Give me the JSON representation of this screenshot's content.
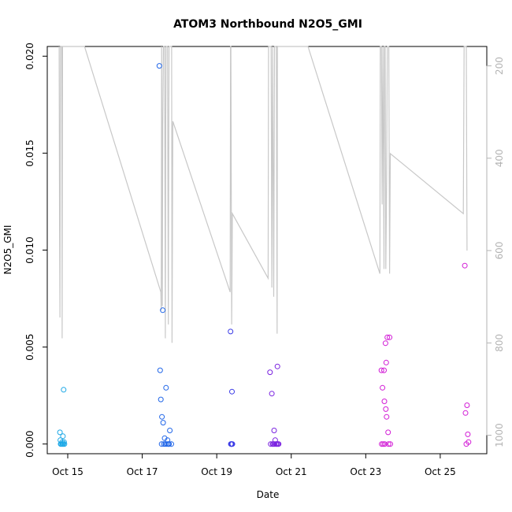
{
  "chart_data": {
    "type": "scatter",
    "title": "ATOM3 Northbound N2O5_GMI",
    "xlabel": "Date",
    "ylabel": "N2O5_GMI",
    "x_ticks": [
      "Oct 15",
      "Oct 17",
      "Oct 19",
      "Oct 21",
      "Oct 23",
      "Oct 25"
    ],
    "x_tick_days": [
      15,
      17,
      19,
      21,
      23,
      25
    ],
    "xlim": [
      14.45,
      26.25
    ],
    "ylim": [
      -0.0005,
      0.0205
    ],
    "y_ticks": [
      "0.000",
      "0.005",
      "0.010",
      "0.015",
      "0.020"
    ],
    "y_tick_values": [
      0.0,
      0.005,
      0.01,
      0.015,
      0.02
    ],
    "y2_ticks": [
      "200",
      "400",
      "600",
      "800",
      "1000"
    ],
    "y2_tick_values": [
      200,
      400,
      600,
      800,
      1000
    ],
    "y2lim_top_to_bottom": [
      158,
      1040
    ],
    "secondary_axis": "pressure (reversed), gray line",
    "grid": false,
    "series": [
      {
        "color": "#1aa7e6",
        "points": [
          [
            14.79,
            0.0006
          ],
          [
            14.8,
            0.0002
          ],
          [
            14.81,
            0.0
          ],
          [
            14.83,
            0.0
          ],
          [
            14.85,
            0.0001
          ],
          [
            14.86,
            0.0
          ],
          [
            14.87,
            0.0004
          ],
          [
            14.88,
            0.0
          ],
          [
            14.89,
            0.0028
          ],
          [
            14.9,
            0.0001
          ],
          [
            14.91,
            0.0
          ]
        ]
      },
      {
        "color": "#2166e8",
        "points": [
          [
            17.46,
            0.0195
          ],
          [
            17.48,
            0.0038
          ],
          [
            17.5,
            0.0023
          ],
          [
            17.52,
            0.0
          ],
          [
            17.53,
            0.0014
          ],
          [
            17.55,
            0.0069
          ],
          [
            17.56,
            0.0011
          ],
          [
            17.58,
            0.0
          ],
          [
            17.6,
            0.0003
          ],
          [
            17.62,
            0.0
          ],
          [
            17.64,
            0.0029
          ],
          [
            17.66,
            0.0
          ],
          [
            17.68,
            0.0002
          ],
          [
            17.7,
            0.0
          ],
          [
            17.72,
            0.0
          ],
          [
            17.74,
            0.0007
          ],
          [
            17.78,
            0.0
          ]
        ]
      },
      {
        "color": "#3a3ae6",
        "points": [
          [
            19.37,
            0.0058
          ],
          [
            19.38,
            0.0
          ],
          [
            19.39,
            0.0
          ],
          [
            19.4,
            0.0
          ],
          [
            19.41,
            0.0027
          ],
          [
            19.42,
            0.0
          ]
        ]
      },
      {
        "color": "#7a22e0",
        "points": [
          [
            20.43,
            0.0037
          ],
          [
            20.45,
            0.0
          ],
          [
            20.48,
            0.0026
          ],
          [
            20.5,
            0.0
          ],
          [
            20.52,
            0.0
          ],
          [
            20.54,
            0.0007
          ],
          [
            20.55,
            0.0
          ],
          [
            20.57,
            0.0002
          ],
          [
            20.59,
            0.0
          ],
          [
            20.61,
            0.0
          ],
          [
            20.63,
            0.004
          ],
          [
            20.64,
            0.0
          ],
          [
            20.66,
            0.0
          ]
        ]
      },
      {
        "color": "#d21cd6",
        "points": [
          [
            23.42,
            0.0038
          ],
          [
            23.43,
            0.0
          ],
          [
            23.45,
            0.0029
          ],
          [
            23.47,
            0.0
          ],
          [
            23.49,
            0.0038
          ],
          [
            23.5,
            0.0022
          ],
          [
            23.51,
            0.0
          ],
          [
            23.53,
            0.0052
          ],
          [
            23.54,
            0.0018
          ],
          [
            23.55,
            0.0042
          ],
          [
            23.56,
            0.0014
          ],
          [
            23.58,
            0.0055
          ],
          [
            23.6,
            0.0006
          ],
          [
            23.61,
            0.0
          ],
          [
            23.64,
            0.0055
          ],
          [
            23.66,
            0.0
          ],
          [
            25.66,
            0.0092
          ],
          [
            25.68,
            0.0016
          ],
          [
            25.7,
            0.0
          ],
          [
            25.72,
            0.002
          ],
          [
            25.74,
            0.0005
          ],
          [
            25.76,
            0.0001
          ]
        ]
      }
    ],
    "pressure_line": {
      "color": "#c8c8c8",
      "points": [
        [
          14.77,
          158
        ],
        [
          14.78,
          535
        ],
        [
          14.79,
          745
        ],
        [
          14.8,
          280
        ],
        [
          14.805,
          158
        ],
        [
          14.84,
          158
        ],
        [
          14.85,
          790
        ],
        [
          14.86,
          158
        ],
        [
          14.88,
          158
        ],
        [
          15.45,
          158
        ],
        [
          17.5,
          690
        ],
        [
          17.51,
          730
        ],
        [
          17.52,
          158
        ],
        [
          17.54,
          720
        ],
        [
          17.55,
          330
        ],
        [
          17.57,
          158
        ],
        [
          17.6,
          158
        ],
        [
          17.62,
          790
        ],
        [
          17.63,
          320
        ],
        [
          17.64,
          158
        ],
        [
          17.68,
          158
        ],
        [
          17.7,
          760
        ],
        [
          17.72,
          158
        ],
        [
          17.74,
          158
        ],
        [
          17.79,
          158
        ],
        [
          17.8,
          800
        ],
        [
          17.82,
          320
        ],
        [
          19.36,
          690
        ],
        [
          19.37,
          158
        ],
        [
          19.38,
          158
        ],
        [
          19.4,
          760
        ],
        [
          19.42,
          520
        ],
        [
          20.38,
          660
        ],
        [
          20.39,
          158
        ],
        [
          20.41,
          158
        ],
        [
          20.46,
          158
        ],
        [
          20.48,
          680
        ],
        [
          20.5,
          158
        ],
        [
          20.53,
          700
        ],
        [
          20.55,
          158
        ],
        [
          20.6,
          158
        ],
        [
          20.62,
          780
        ],
        [
          20.63,
          158
        ],
        [
          20.66,
          158
        ],
        [
          21.45,
          158
        ],
        [
          23.38,
          650
        ],
        [
          23.39,
          158
        ],
        [
          23.42,
          158
        ],
        [
          23.44,
          500
        ],
        [
          23.46,
          158
        ],
        [
          23.49,
          640
        ],
        [
          23.5,
          158
        ],
        [
          23.52,
          158
        ],
        [
          23.54,
          640
        ],
        [
          23.56,
          450
        ],
        [
          23.58,
          158
        ],
        [
          23.62,
          158
        ],
        [
          23.64,
          650
        ],
        [
          23.66,
          390
        ],
        [
          25.62,
          520
        ],
        [
          25.64,
          158
        ],
        [
          25.7,
          158
        ],
        [
          25.72,
          600
        ]
      ]
    }
  }
}
